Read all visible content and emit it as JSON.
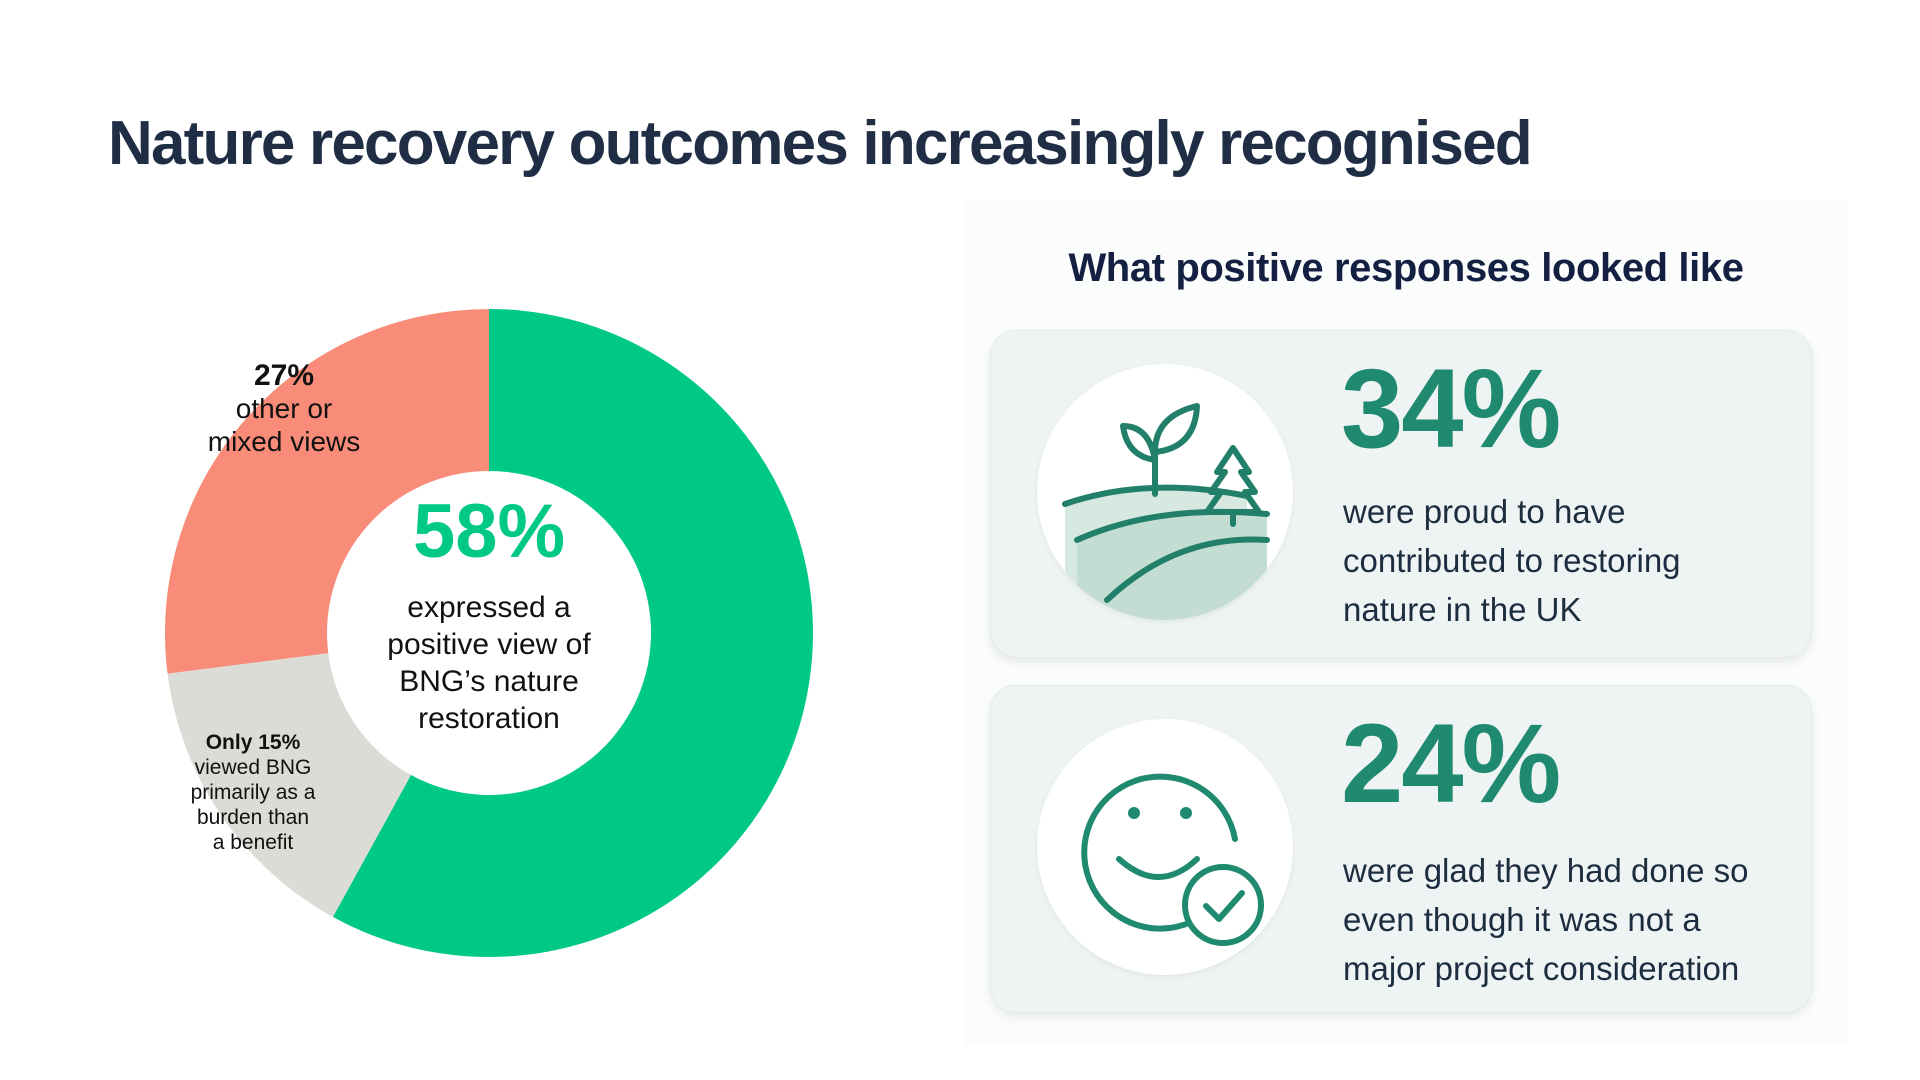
{
  "title": "Nature recovery outcomes increasingly recognised",
  "chart_data": {
    "type": "pie",
    "variant": "donut",
    "slices": [
      {
        "label": "expressed a positive view of BNG’s nature restoration",
        "value": 58,
        "color": "#00c887"
      },
      {
        "label": "viewed BNG primarily as a burden than a benefit",
        "value": 15,
        "color": "#dcdcd7"
      },
      {
        "label": "other or mixed views",
        "value": 27,
        "color": "#f98c78"
      }
    ],
    "center": {
      "value": "58%",
      "lines": [
        "expressed a",
        "positive view of",
        "BNG’s nature",
        "restoration"
      ]
    },
    "labels": {
      "mixed": {
        "value": "27%",
        "lines": [
          "other or",
          "mixed views"
        ]
      },
      "burden": {
        "value": "Only 15%",
        "lines": [
          "viewed BNG",
          "primarily as a",
          "burden than",
          "a benefit"
        ]
      }
    },
    "colors": {
      "positive": "#00c887",
      "burden": "#dcdcd7",
      "mixed": "#f98c78"
    }
  },
  "panel": {
    "title": "What positive responses looked like",
    "cards": [
      {
        "icon": "landscape-plant-icon",
        "value": "34%",
        "lines": [
          "were proud to have",
          "contributed to restoring",
          "nature in the UK"
        ]
      },
      {
        "icon": "smiley-check-icon",
        "value": "24%",
        "lines": [
          "were glad they had done so",
          "even though it was not a",
          "major project consideration"
        ]
      }
    ],
    "accent": "#1f8a70"
  }
}
